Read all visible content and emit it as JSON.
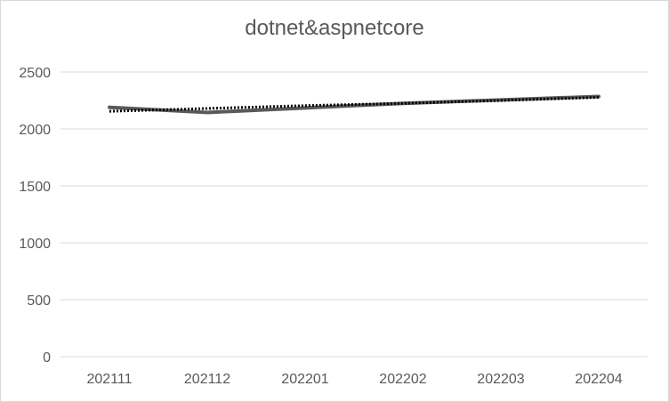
{
  "chart_data": {
    "type": "line",
    "title": "dotnet&aspnetcore",
    "xlabel": "",
    "ylabel": "",
    "categories": [
      "202111",
      "202112",
      "202201",
      "202202",
      "202203",
      "202204"
    ],
    "series": [
      {
        "values": [
          2190,
          2145,
          2185,
          2225,
          2255,
          2285
        ],
        "color": "#595959",
        "style": "solid"
      },
      {
        "values": [
          2155,
          2180,
          2205,
          2225,
          2250,
          2278
        ],
        "color": "#000000",
        "style": "dotted",
        "kind": "trendline"
      }
    ],
    "ylim": [
      0,
      2500
    ],
    "yticks": [
      0,
      500,
      1000,
      1500,
      2000,
      2500
    ],
    "grid": true,
    "legend": "none"
  }
}
